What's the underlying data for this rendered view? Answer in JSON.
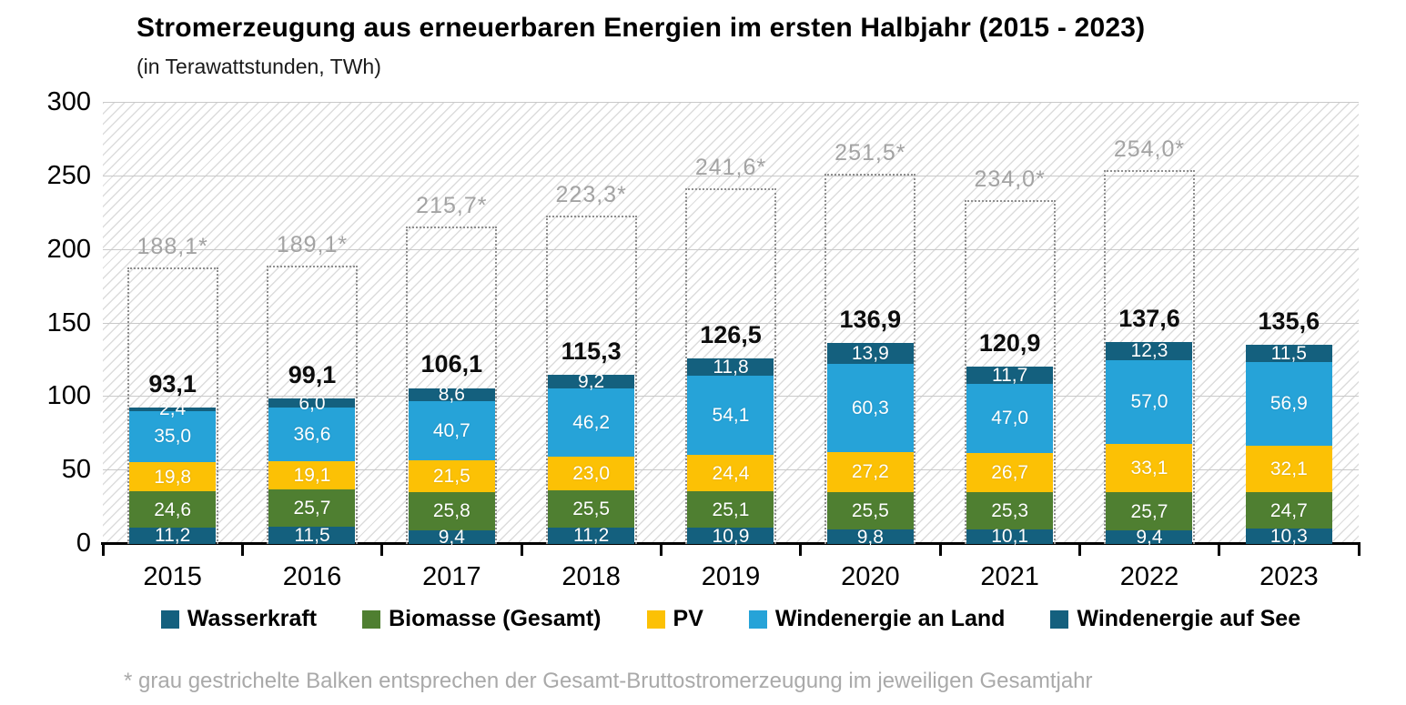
{
  "header": {
    "title": "Stromerzeugung aus erneuerbaren Energien im ersten Halbjahr (2015 - 2023)",
    "subtitle": "(in Terawattstunden, TWh)"
  },
  "chart_data": {
    "type": "bar",
    "stacked": true,
    "title": "Stromerzeugung aus erneuerbaren Energien im ersten Halbjahr (2015 - 2023)",
    "subtitle": "(in Terawattstunden, TWh)",
    "unit": "TWh",
    "grid": true,
    "legend_position": "bottom",
    "ylim": [
      0,
      300
    ],
    "yticks": [
      0,
      50,
      100,
      150,
      200,
      250,
      300
    ],
    "categories": [
      "2015",
      "2016",
      "2017",
      "2018",
      "2019",
      "2020",
      "2021",
      "2022",
      "2023"
    ],
    "series": [
      {
        "name": "Wasserkraft",
        "color": "#14607E",
        "values": [
          11.2,
          11.5,
          9.4,
          11.2,
          10.9,
          9.8,
          10.1,
          9.4,
          10.3
        ],
        "labels": [
          "11,2",
          "11,5",
          "9,4",
          "11,2",
          "10,9",
          "9,8",
          "10,1",
          "9,4",
          "10,3"
        ]
      },
      {
        "name": "Biomasse (Gesamt)",
        "color": "#4F7F31",
        "values": [
          24.6,
          25.7,
          25.8,
          25.5,
          25.1,
          25.5,
          25.3,
          25.7,
          24.7
        ],
        "labels": [
          "24,6",
          "25,7",
          "25,8",
          "25,5",
          "25,1",
          "25,5",
          "25,3",
          "25,7",
          "24,7"
        ]
      },
      {
        "name": "PV",
        "color": "#FCC105",
        "values": [
          19.8,
          19.1,
          21.5,
          23.0,
          24.4,
          27.2,
          26.7,
          33.1,
          32.1
        ],
        "labels": [
          "19,8",
          "19,1",
          "21,5",
          "23,0",
          "24,4",
          "27,2",
          "26,7",
          "33,1",
          "32,1"
        ]
      },
      {
        "name": "Windenergie an Land",
        "color": "#26A3D8",
        "values": [
          35.0,
          36.6,
          40.7,
          46.2,
          54.1,
          60.3,
          47.0,
          57.0,
          56.9
        ],
        "labels": [
          "35,0",
          "36,6",
          "40,7",
          "46,2",
          "54,1",
          "60,3",
          "47,0",
          "57,0",
          "56,9"
        ]
      },
      {
        "name": "Windenergie auf See",
        "color": "#14607E",
        "values": [
          2.4,
          6.0,
          8.6,
          9.2,
          11.8,
          13.9,
          11.7,
          12.3,
          11.5
        ],
        "labels": [
          "2,4",
          "6,0",
          "8,6",
          "9,2",
          "11,8",
          "13,9",
          "11,7",
          "12,3",
          "11,5"
        ]
      }
    ],
    "totals": {
      "values": [
        93.1,
        99.1,
        106.1,
        115.3,
        126.5,
        136.9,
        120.9,
        137.6,
        135.6
      ],
      "labels": [
        "93,1",
        "99,1",
        "106,1",
        "115,3",
        "126,5",
        "136,9",
        "120,9",
        "137,6",
        "135,6"
      ]
    },
    "annual_gross_totals": {
      "values": [
        188.1,
        189.1,
        215.7,
        223.3,
        241.6,
        251.5,
        234.0,
        254.0,
        null
      ],
      "labels": [
        "188,1*",
        "189,1*",
        "215,7*",
        "223,3*",
        "241,6*",
        "251,5*",
        "234,0*",
        "254,0*",
        null
      ],
      "style": "gray-dotted-outline"
    }
  },
  "legend": {
    "items": [
      {
        "label": "Wasserkraft",
        "color": "#14607E"
      },
      {
        "label": "Biomasse (Gesamt)",
        "color": "#4F7F31"
      },
      {
        "label": "PV",
        "color": "#FCC105"
      },
      {
        "label": "Windenergie an Land",
        "color": "#26A3D8"
      },
      {
        "label": "Windenergie auf See",
        "color": "#14607E"
      }
    ]
  },
  "footnote": {
    "text": "* grau gestrichelte Balken entsprechen der Gesamt-Bruttostromerzeugung im jeweiligen Gesamtjahr"
  }
}
